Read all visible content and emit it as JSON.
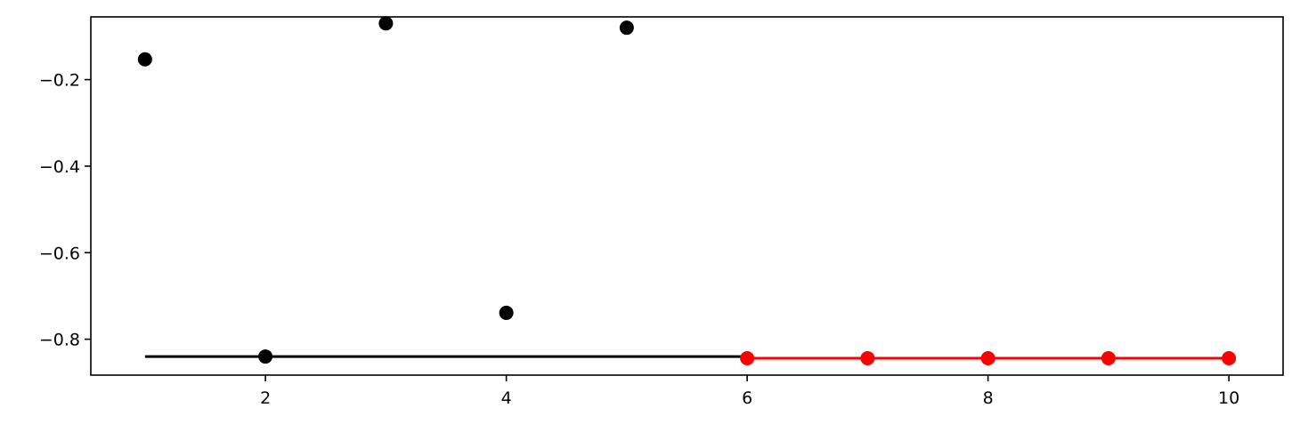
{
  "chart_data": {
    "type": "scatter",
    "title": "",
    "xlabel": "",
    "ylabel": "",
    "xlim": [
      0.55,
      10.45
    ],
    "ylim": [
      -0.883,
      -0.055
    ],
    "grid": false,
    "x_ticks": [
      2,
      4,
      6,
      8,
      10
    ],
    "x_tick_labels": [
      "2",
      "4",
      "6",
      "8",
      "10"
    ],
    "y_ticks": [
      -0.2,
      -0.4,
      -0.6,
      -0.8
    ],
    "y_tick_labels": [
      "−0.2",
      "−0.4",
      "−0.6",
      "−0.8"
    ],
    "series": [
      {
        "kind": "points",
        "color": "#000000",
        "x": [
          1,
          2,
          3,
          4,
          5
        ],
        "y": [
          -0.153,
          -0.84,
          -0.07,
          -0.739,
          -0.08
        ]
      },
      {
        "kind": "line",
        "color": "#000000",
        "x": [
          1,
          6
        ],
        "y": [
          -0.84,
          -0.84
        ]
      },
      {
        "kind": "line-with-markers",
        "color": "#ff0000",
        "x": [
          6,
          7,
          8,
          9,
          10
        ],
        "y": [
          -0.844,
          -0.844,
          -0.844,
          -0.844,
          -0.844
        ]
      }
    ]
  }
}
